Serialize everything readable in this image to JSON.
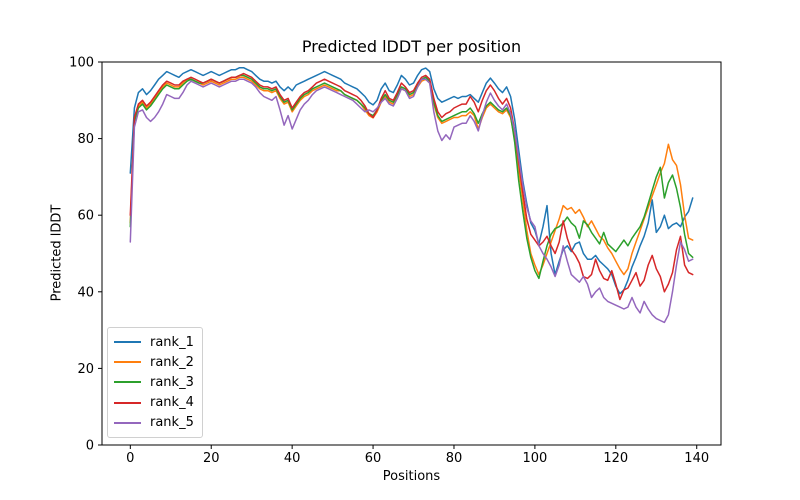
{
  "figure": {
    "background": "#ffffff",
    "title": "Predicted lDDT per position",
    "xlabel": "Positions",
    "ylabel": "Predicted lDDT"
  },
  "chart_data": {
    "type": "line",
    "title": "Predicted lDDT per position",
    "xlabel": "Positions",
    "ylabel": "Predicted lDDT",
    "xlim": [
      -7,
      146
    ],
    "ylim": [
      0,
      100
    ],
    "x_ticks": [
      0,
      20,
      40,
      60,
      80,
      100,
      120,
      140
    ],
    "y_ticks": [
      0,
      20,
      40,
      60,
      80,
      100
    ],
    "grid": false,
    "legend_position": "lower left",
    "x_is_index": true,
    "series": [
      {
        "name": "rank_1",
        "color": "#1f77b4",
        "values": [
          71,
          88,
          92,
          93,
          91.5,
          92.5,
          94,
          95.5,
          96.5,
          97.5,
          97,
          96.5,
          96,
          97,
          97.5,
          98,
          97.5,
          97,
          96.5,
          97,
          97.5,
          97,
          96.5,
          97,
          97.5,
          98,
          98,
          98.5,
          98.5,
          98,
          97.5,
          96.5,
          95.5,
          95,
          95,
          94.5,
          95,
          93.5,
          92.5,
          93.5,
          92.5,
          94,
          94.5,
          95,
          95.5,
          96,
          96.5,
          97,
          97.5,
          97,
          96.5,
          96,
          95.5,
          94.5,
          94,
          93.5,
          93,
          92,
          91,
          89.5,
          88.8,
          90,
          93,
          94.5,
          92.5,
          92,
          94,
          96.5,
          95.5,
          94,
          94.5,
          96.5,
          98,
          98.4,
          97.5,
          93,
          90.5,
          89.5,
          90,
          90.5,
          91,
          90.5,
          91,
          91,
          91.5,
          90.5,
          89.5,
          92,
          94.5,
          95.8,
          94.5,
          93,
          92,
          93.5,
          91,
          85,
          77,
          69,
          63,
          58,
          56,
          52.5,
          57,
          62.5,
          50,
          44.5,
          48,
          51,
          52,
          50.5,
          52.5,
          53,
          50,
          48.5,
          48.5,
          49.5,
          48,
          47,
          46,
          44.5,
          41.5,
          39.5,
          40.5,
          43,
          46.5,
          49,
          52,
          54.5,
          58,
          64,
          55.5,
          57,
          60,
          56.5,
          57.5,
          58,
          57,
          59.5,
          61,
          64.5
        ]
      },
      {
        "name": "rank_2",
        "color": "#ff7f0e",
        "values": [
          58,
          85,
          88.5,
          89.5,
          88,
          89,
          90.5,
          92,
          93.5,
          94.5,
          94,
          93.5,
          93.5,
          94.5,
          95.5,
          95.5,
          95,
          94.5,
          94,
          94.5,
          95,
          94.5,
          94,
          94.5,
          95,
          95.5,
          95.5,
          96,
          96,
          95.5,
          95,
          94,
          93,
          92.5,
          92.5,
          92,
          92.5,
          90.5,
          89,
          89.5,
          87,
          88.5,
          90,
          91,
          91.5,
          92.5,
          93,
          93.5,
          94,
          93.5,
          93,
          92.5,
          92.5,
          91.5,
          91,
          90.5,
          90,
          89,
          87.5,
          86,
          85.4,
          87,
          89.5,
          91,
          89.5,
          89,
          91,
          93,
          92.5,
          91,
          91.5,
          93.5,
          95,
          95.5,
          94.5,
          89,
          85.5,
          84,
          84.5,
          85,
          85.5,
          85.5,
          86,
          86,
          87,
          86,
          82.5,
          85.5,
          88,
          89,
          88,
          87,
          86.5,
          87.5,
          85.5,
          80,
          72,
          64,
          56,
          50,
          47,
          44.5,
          47,
          50,
          53,
          56,
          59,
          62.5,
          61.5,
          62,
          60.5,
          61.5,
          59.5,
          57,
          58.5,
          56.5,
          54.5,
          53.5,
          51.5,
          50,
          48,
          46,
          44.5,
          46,
          50,
          53,
          56,
          59,
          62,
          65,
          68,
          71,
          73.5,
          78.5,
          74.5,
          73,
          68,
          60,
          54,
          53.5
        ]
      },
      {
        "name": "rank_3",
        "color": "#2ca02c",
        "values": [
          57,
          84.5,
          88,
          89,
          87.5,
          88.5,
          90,
          91.5,
          93,
          94,
          93.5,
          93,
          93,
          94,
          95,
          95.5,
          95,
          94.5,
          94.5,
          95,
          95.5,
          95,
          94.5,
          95,
          95.5,
          96,
          96,
          96.5,
          96.5,
          96,
          95.5,
          94.5,
          93.5,
          93,
          93,
          92.5,
          93,
          91,
          89.5,
          90,
          87.5,
          89,
          90.5,
          91.5,
          92,
          93,
          93.5,
          94,
          94.5,
          94,
          93.5,
          93,
          92.5,
          91.5,
          91,
          90.5,
          90,
          89,
          88,
          86.5,
          86,
          87.5,
          90,
          91.5,
          90,
          89.5,
          91.5,
          93.5,
          93,
          91.5,
          92,
          94,
          95.5,
          96,
          95,
          89.5,
          86,
          84.5,
          85,
          85.5,
          86,
          86.5,
          87,
          87,
          88,
          86.5,
          84,
          86.5,
          88.5,
          89.5,
          88.5,
          87.5,
          87,
          88,
          86,
          79,
          69,
          61,
          54,
          49,
          45.5,
          43.5,
          48,
          52,
          55,
          56.5,
          57,
          58,
          59.5,
          58,
          57,
          54,
          58.5,
          57.5,
          55.5,
          54,
          52.5,
          55.5,
          52.5,
          51.5,
          50.5,
          52,
          53.5,
          52,
          54,
          55.5,
          57,
          59.5,
          63,
          66.5,
          70,
          72.5,
          64.5,
          68.5,
          70.5,
          67,
          62,
          55,
          50,
          49
        ]
      },
      {
        "name": "rank_4",
        "color": "#d62728",
        "values": [
          60,
          85.5,
          89,
          90,
          88.5,
          89.5,
          91,
          92.5,
          94,
          95,
          94.5,
          94,
          94,
          95,
          95.5,
          96,
          95.5,
          95,
          94.5,
          95,
          95.5,
          95,
          94.5,
          95,
          95.5,
          96,
          96,
          96.5,
          97,
          96.5,
          96,
          95,
          94,
          93.5,
          93.5,
          93,
          93.5,
          91.5,
          90,
          90.5,
          88,
          89.5,
          91,
          92,
          92.5,
          93.5,
          94.5,
          95,
          95.5,
          95,
          94.5,
          94,
          93.5,
          92.5,
          92,
          91.5,
          91,
          90,
          88.5,
          86.5,
          85.5,
          87.5,
          90.5,
          92.5,
          90.5,
          90,
          92,
          94.5,
          93.5,
          92,
          92.5,
          94.5,
          96,
          96.5,
          95.5,
          90.5,
          87,
          85.5,
          86.5,
          87,
          88,
          88.5,
          89,
          89,
          91,
          89.5,
          87,
          90,
          92.5,
          94,
          92.5,
          90.5,
          89,
          90.5,
          88,
          82,
          74,
          66,
          59,
          55,
          53.5,
          52,
          53,
          54.5,
          52,
          50,
          53,
          58.5,
          54,
          51,
          49.5,
          47.5,
          44,
          43.5,
          44.5,
          48.5,
          45.5,
          43.5,
          43,
          45.5,
          42,
          38,
          40.5,
          41,
          43,
          45,
          41.5,
          43,
          47,
          49.5,
          46,
          44,
          40,
          42,
          45,
          51,
          54.5,
          47,
          45,
          44.5
        ]
      },
      {
        "name": "rank_5",
        "color": "#9467bd",
        "values": [
          53,
          83,
          87,
          87.5,
          85.5,
          84.5,
          85.5,
          87,
          89,
          91.5,
          91,
          90.5,
          90.5,
          92,
          94,
          95,
          94.5,
          94,
          93.5,
          94,
          94.5,
          94,
          93.5,
          94,
          94.5,
          95,
          95,
          95.5,
          95.5,
          95,
          94.5,
          93.5,
          92,
          91,
          90.5,
          90,
          91,
          87.5,
          83.5,
          86,
          82.5,
          85,
          87.5,
          89,
          90,
          91.5,
          92.5,
          93,
          93.5,
          93,
          92.5,
          92,
          91.5,
          91,
          90.5,
          90,
          89,
          88,
          87,
          87.5,
          87,
          88,
          89.5,
          90.5,
          89,
          88.5,
          90.5,
          93,
          92.5,
          90.5,
          91,
          93.5,
          95.5,
          95.5,
          94.5,
          87,
          82,
          79.5,
          81,
          79.8,
          83,
          83.5,
          84,
          84,
          86,
          84.5,
          82,
          86,
          89.5,
          91.9,
          90,
          88.5,
          87.5,
          89,
          86.5,
          82,
          75,
          68,
          62,
          58.5,
          57,
          52,
          50,
          48.5,
          46.5,
          44,
          47,
          52,
          48,
          44.5,
          43.5,
          42.5,
          44,
          42,
          38.5,
          40,
          41,
          38.5,
          37.5,
          37,
          36.5,
          36,
          35.5,
          36,
          38.5,
          36,
          34.5,
          37.5,
          35.5,
          34,
          33,
          32.5,
          32,
          34,
          40,
          47,
          53,
          51,
          48,
          48.5
        ]
      }
    ]
  }
}
